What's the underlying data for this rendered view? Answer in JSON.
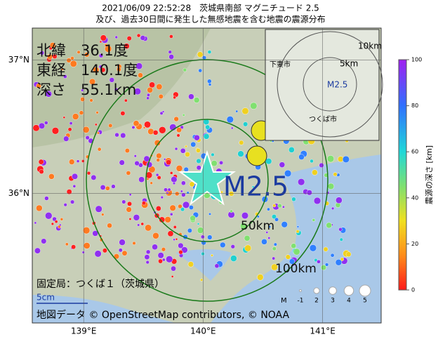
{
  "title": [
    "2021/06/09 22:52:28　茨城県南部 マグニチュード 2.5",
    "及び、過去30日間に発生した無感地震を含む地震の震源分布"
  ],
  "info": {
    "lat": "北緯　36.1度",
    "lon": "東経　140.1度",
    "depth": "深さ　55.1km"
  },
  "magnitude_label": "M2.5",
  "distance_labels": [
    "50km",
    "100km"
  ],
  "inset": {
    "distance_labels": [
      "10km",
      "5km"
    ],
    "magnitude_label": "M2.5",
    "places": [
      "下妻市",
      "つくば市"
    ]
  },
  "lat_ticks": [
    {
      "value": 37,
      "label": "37°N"
    },
    {
      "value": 36,
      "label": "36°N"
    }
  ],
  "lat_range": [
    37.24,
    35.03
  ],
  "lon_ticks": [
    {
      "value": 139,
      "label": "139°E"
    },
    {
      "value": 140,
      "label": "140°E"
    },
    {
      "value": 141,
      "label": "141°E"
    }
  ],
  "lon_range": [
    138.57,
    141.49
  ],
  "station": "固定局：つくば１（茨城県）",
  "scale": "5cm",
  "credit": "地図データ © OpenStreetMap contributors, © NOAA",
  "magnitude_legend": {
    "title": "M",
    "sizes": [
      -1,
      2,
      3,
      4,
      5
    ]
  },
  "colorbar": {
    "title": "震源の深さ [km]",
    "range": [
      0,
      100
    ],
    "ticks": [
      0,
      20,
      40,
      60,
      80,
      100
    ]
  }
}
